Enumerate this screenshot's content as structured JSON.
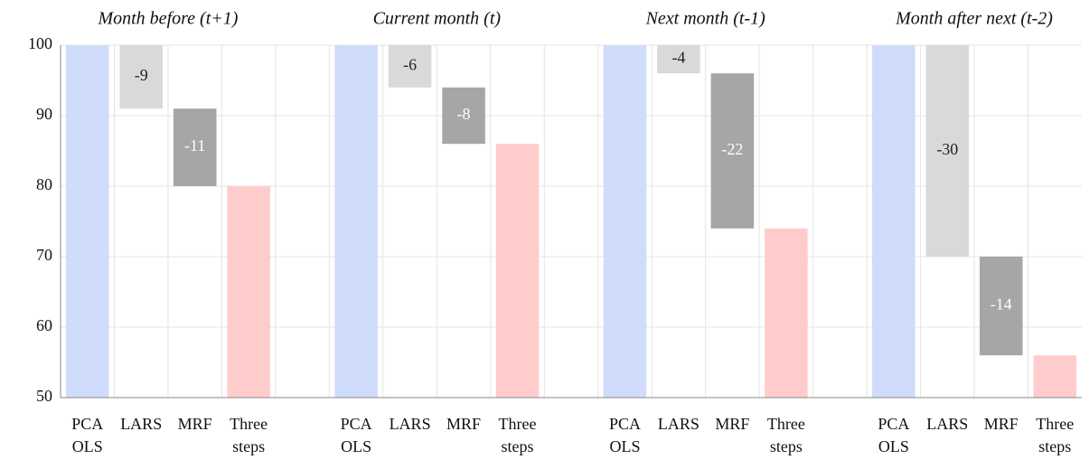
{
  "chart_data": {
    "type": "waterfall",
    "ylim": [
      50,
      100
    ],
    "yticks": [
      50,
      60,
      70,
      80,
      90,
      100
    ],
    "grid": true,
    "categories": [
      "PCA OLS",
      "LARS",
      "MRF",
      "Three steps"
    ],
    "colors": [
      "#cfdcfb",
      "#d9d9d9",
      "#a6a6a6",
      "#ffcccc"
    ],
    "label_colors": [
      null,
      "#222222",
      "#ffffff",
      null
    ],
    "panels": [
      {
        "title": "Month before (t+1)",
        "values": [
          100,
          -9,
          -11,
          80
        ]
      },
      {
        "title": "Current month (t)",
        "values": [
          100,
          -6,
          -8,
          86
        ]
      },
      {
        "title": "Next month (t-1)",
        "values": [
          100,
          -4,
          -22,
          74
        ]
      },
      {
        "title": "Month after next (t-2)",
        "values": [
          100,
          -30,
          -14,
          56
        ]
      }
    ]
  }
}
